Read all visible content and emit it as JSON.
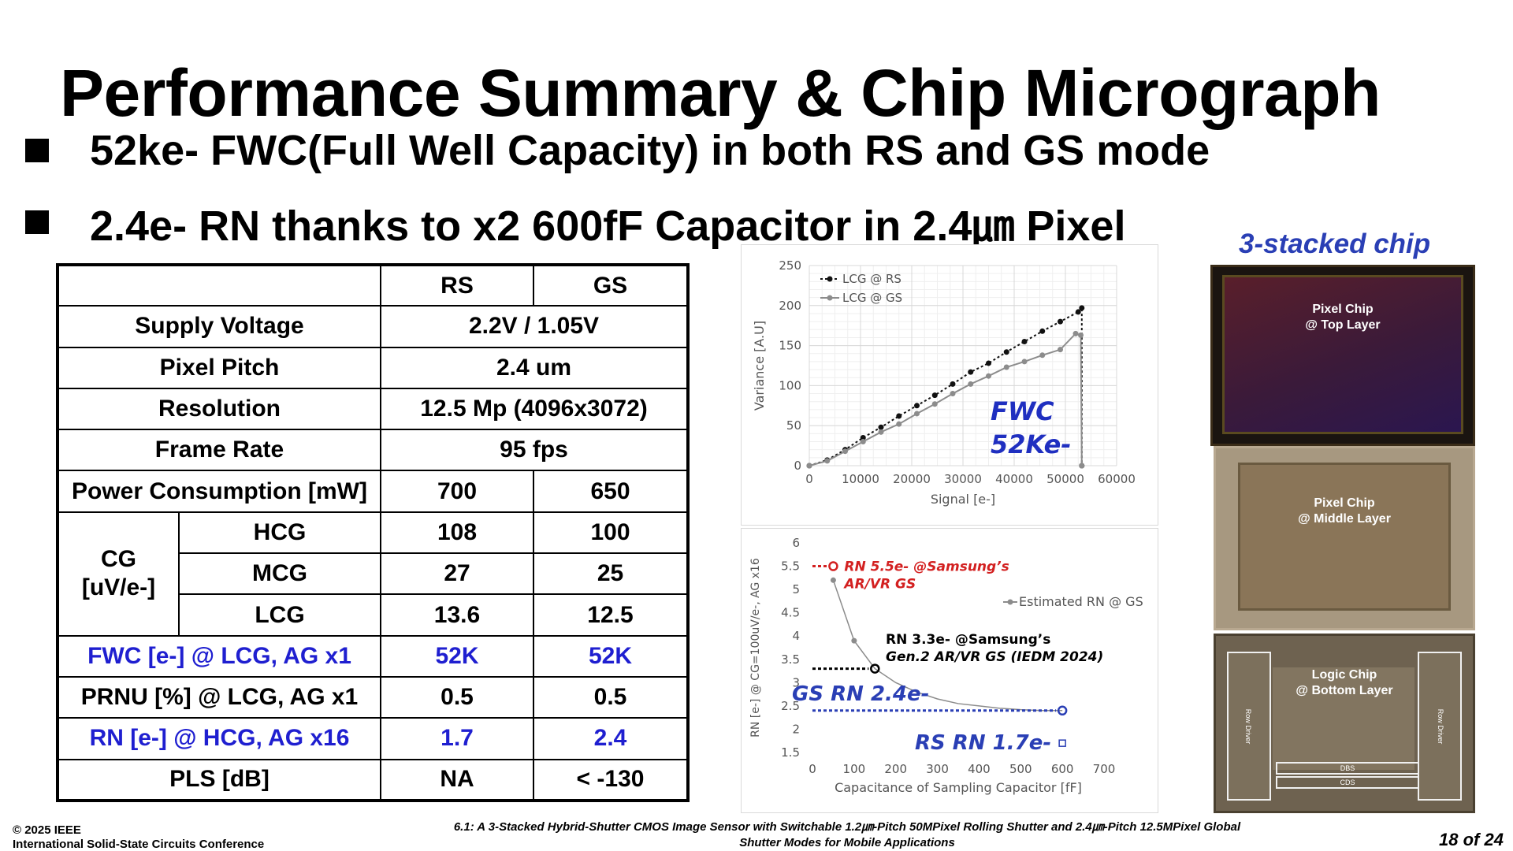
{
  "slide": {
    "title": "Performance Summary & Chip Micrograph",
    "bullets": [
      "52ke- FWC(Full Well Capacity) in both RS and GS mode",
      "2.4e- RN thanks to x2 600fF Capacitor in 2.4㎛ Pixel"
    ]
  },
  "table": {
    "header": [
      "",
      "RS",
      "GS"
    ],
    "supply_voltage": {
      "label": "Supply Voltage",
      "value": "2.2V / 1.05V"
    },
    "pixel_pitch": {
      "label": "Pixel Pitch",
      "value": "2.4 um"
    },
    "resolution": {
      "label": "Resolution",
      "value": "12.5 Mp (4096x3072)"
    },
    "frame_rate": {
      "label": "Frame Rate",
      "value": "95 fps"
    },
    "power": {
      "label": "Power Consumption [mW]",
      "rs": "700",
      "gs": "650"
    },
    "cg": {
      "label_line1": "CG",
      "label_line2": "[uV/e-]",
      "hcg": {
        "label": "HCG",
        "rs": "108",
        "gs": "100"
      },
      "mcg": {
        "label": "MCG",
        "rs": "27",
        "gs": "25"
      },
      "lcg": {
        "label": "LCG",
        "rs": "13.6",
        "gs": "12.5"
      }
    },
    "fwc": {
      "label": "FWC [e-] @ LCG, AG x1",
      "rs": "52K",
      "gs": "52K"
    },
    "prnu": {
      "label": "PRNU [%] @ LCG, AG x1",
      "rs": "0.5",
      "gs": "0.5"
    },
    "rn": {
      "label": "RN [e-] @ HCG, AG x16",
      "rs": "1.7",
      "gs": "2.4"
    },
    "pls": {
      "label": "PLS [dB]",
      "rs": "NA",
      "gs": "< -130"
    }
  },
  "chart_data": [
    {
      "type": "line",
      "xlabel": "Signal [e-]",
      "ylabel": "Variance [A.U]",
      "xlim": [
        0,
        60000
      ],
      "ylim": [
        0,
        250
      ],
      "xticks": [
        "0",
        "10000",
        "20000",
        "30000",
        "40000",
        "50000",
        "60000"
      ],
      "yticks": [
        "0",
        "50",
        "100",
        "150",
        "200",
        "250"
      ],
      "grid": true,
      "legend_position": "top-left",
      "annotation_line1": "FWC",
      "annotation_line2": "52Ke-",
      "series": [
        {
          "name": "LCG @ RS",
          "color": "#111111",
          "style": "dotted",
          "points": [
            [
              0,
              0
            ],
            [
              3500,
              7
            ],
            [
              7000,
              20
            ],
            [
              10500,
              35
            ],
            [
              14000,
              48
            ],
            [
              17500,
              62
            ],
            [
              21000,
              75
            ],
            [
              24500,
              88
            ],
            [
              28000,
              102
            ],
            [
              31500,
              117
            ],
            [
              35000,
              128
            ],
            [
              38500,
              142
            ],
            [
              42000,
              155
            ],
            [
              45500,
              168
            ],
            [
              49000,
              180
            ],
            [
              52500,
              192
            ],
            [
              53200,
              197
            ],
            [
              53200,
              0
            ]
          ]
        },
        {
          "name": "LCG @ GS",
          "color": "#8c8c8c",
          "style": "solid",
          "points": [
            [
              0,
              0
            ],
            [
              3500,
              6
            ],
            [
              7000,
              18
            ],
            [
              10500,
              30
            ],
            [
              14000,
              42
            ],
            [
              17500,
              52
            ],
            [
              21000,
              65
            ],
            [
              24500,
              77
            ],
            [
              28000,
              90
            ],
            [
              31500,
              102
            ],
            [
              35000,
              112
            ],
            [
              38500,
              123
            ],
            [
              42000,
              130
            ],
            [
              45500,
              138
            ],
            [
              49000,
              145
            ],
            [
              52000,
              165
            ],
            [
              53000,
              163
            ],
            [
              53200,
              0
            ]
          ]
        }
      ]
    },
    {
      "type": "line",
      "xlabel": "Capacitance of Sampling Capacitor [fF]",
      "ylabel": "RN [e-] @ CG=100uV/e-, AG x16",
      "xlim": [
        0,
        700
      ],
      "ylim": [
        1.5,
        6
      ],
      "xticks": [
        "0",
        "100",
        "200",
        "300",
        "400",
        "500",
        "600",
        "700"
      ],
      "yticks": [
        "1.5",
        "2",
        "2.5",
        "3",
        "3.5",
        "4",
        "4.5",
        "5",
        "5.5",
        "6"
      ],
      "grid": false,
      "legend_position": "right",
      "series": [
        {
          "name": "Estimated RN @ GS",
          "color": "#8c8c8c",
          "points": [
            [
              50,
              5.2
            ],
            [
              100,
              3.9
            ],
            [
              150,
              3.3
            ],
            [
              200,
              3.0
            ],
            [
              250,
              2.8
            ],
            [
              300,
              2.65
            ],
            [
              350,
              2.55
            ],
            [
              400,
              2.5
            ],
            [
              450,
              2.45
            ],
            [
              500,
              2.42
            ],
            [
              550,
              2.4
            ],
            [
              600,
              2.4
            ]
          ]
        }
      ],
      "markers": [
        {
          "label_line1": "RN 5.5e- @Samsung’s",
          "label_line2": "AR/VR GS",
          "x": 50,
          "y": 5.5,
          "color": "#d32020"
        },
        {
          "label_line1": "RN 3.3e- @Samsung’s",
          "label_line2": "Gen.2 AR/VR GS (IEDM 2024)",
          "x": 150,
          "y": 3.3,
          "color": "#000000"
        },
        {
          "label_line1": "GS RN 2.4e-",
          "x": 600,
          "y": 2.4,
          "color": "#2a3fb5"
        },
        {
          "label_line1": "RS RN 1.7e-",
          "x": 600,
          "y": 1.7,
          "color": "#2a3fb5"
        }
      ]
    }
  ],
  "chip": {
    "title": "3-stacked chip",
    "top": {
      "line1": "Pixel Chip",
      "line2": "@ Top Layer"
    },
    "middle": {
      "line1": "Pixel Chip",
      "line2": "@ Middle Layer"
    },
    "bottom": {
      "line1": "Logic Chip",
      "line2": "@ Bottom Layer",
      "row_driver": "Row Driver",
      "dbs": "DBS",
      "cds": "CDS"
    }
  },
  "footer": {
    "copyright": "© 2025 IEEE",
    "conference": "International Solid-State Circuits Conference",
    "citation_line1": "6.1: A 3-Stacked Hybrid-Shutter CMOS Image Sensor with Switchable 1.2㎛-Pitch 50MPixel Rolling Shutter and 2.4㎛-Pitch 12.5MPixel Global",
    "citation_line2": "Shutter Modes for Mobile Applications",
    "page": "18 of 24"
  }
}
